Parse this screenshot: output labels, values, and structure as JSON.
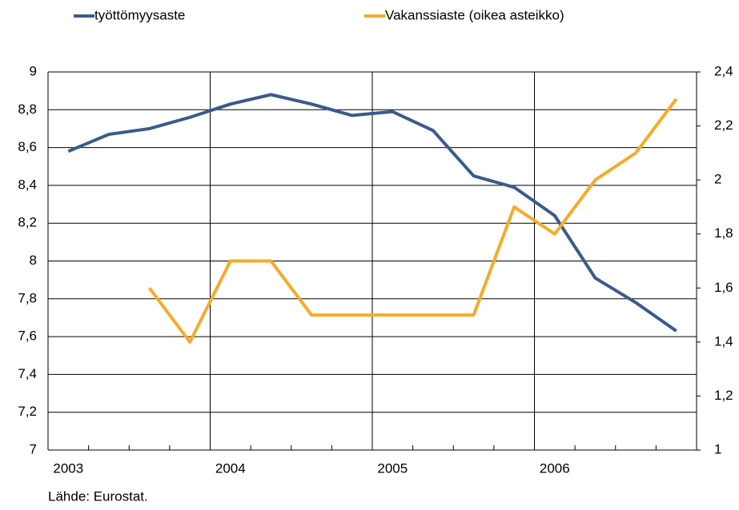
{
  "chart_data": {
    "type": "line",
    "categories": [
      "2003",
      null,
      null,
      null,
      "2004",
      null,
      null,
      null,
      "2005",
      null,
      null,
      null,
      "2006",
      null,
      null,
      null
    ],
    "series": [
      {
        "name": "työttömyysaste",
        "color": "#3b5a8c",
        "values": [
          8.58,
          8.67,
          8.7,
          8.76,
          8.83,
          8.88,
          8.83,
          8.77,
          8.79,
          8.69,
          8.45,
          8.39,
          8.24,
          7.91,
          7.78,
          7.63
        ]
      },
      {
        "name": "Vakanssiaste (oikea asteikko)",
        "color": "#f5ab2a",
        "axis": "y2",
        "values": [
          null,
          null,
          1.6,
          1.4,
          1.7,
          1.7,
          1.5,
          1.5,
          1.5,
          1.5,
          1.5,
          1.9,
          1.8,
          2.0,
          2.1,
          2.3
        ]
      }
    ],
    "ylim": [
      7,
      9
    ],
    "yticks": [
      7,
      {
        "value": 7.2,
        "label": "7,2"
      },
      {
        "value": 7.4,
        "label": "7,4"
      },
      {
        "value": 7.6,
        "label": "7,6"
      },
      {
        "value": 7.8,
        "label": "7,8"
      },
      8,
      {
        "value": 8.2,
        "label": "8,2"
      },
      {
        "value": 8.4,
        "label": "8,4"
      },
      {
        "value": 8.6,
        "label": "8,6"
      },
      {
        "value": 8.8,
        "label": "8,8"
      },
      9
    ],
    "y2lim": [
      1,
      2.4
    ],
    "y2ticks": [
      1,
      {
        "value": 1.2,
        "label": "1,2"
      },
      {
        "value": 1.4,
        "label": "1,4"
      },
      {
        "value": 1.6,
        "label": "1,6"
      },
      {
        "value": 1.8,
        "label": "1,8"
      },
      2,
      {
        "value": 2.2,
        "label": "2,2"
      },
      {
        "value": 2.4,
        "label": "2,4"
      }
    ],
    "grid": true,
    "source": "Lähde: Eurostat."
  }
}
